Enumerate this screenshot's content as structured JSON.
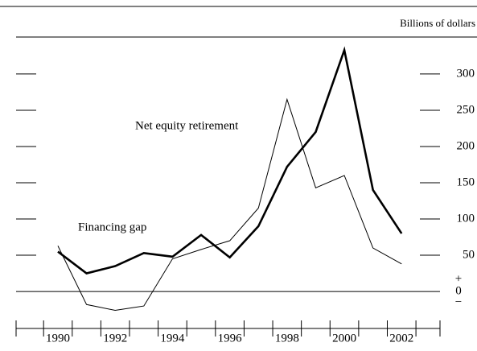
{
  "chart_data": {
    "type": "line",
    "unit_label": "Billions of dollars",
    "x": [
      1990,
      1991,
      1992,
      1993,
      1994,
      1995,
      1996,
      1997,
      1998,
      1999,
      2000,
      2001,
      2002
    ],
    "series": [
      {
        "name": "Net equity retirement",
        "color": "#000000",
        "width": 2.6,
        "values": [
          55,
          25,
          35,
          53,
          48,
          78,
          47,
          90,
          172,
          220,
          333,
          140,
          80
        ]
      },
      {
        "name": "Financing gap",
        "color": "#000000",
        "width": 1,
        "values": [
          63,
          -18,
          -26,
          -20,
          45,
          58,
          70,
          115,
          265,
          143,
          160,
          60,
          38
        ]
      }
    ],
    "xlim": [
      1988.54,
      2003.34
    ],
    "xticks": [
      1990,
      1992,
      1994,
      1996,
      1998,
      2000,
      2002
    ],
    "ylim": [
      -51,
      351
    ],
    "yticks": [
      0,
      50,
      100,
      150,
      200,
      250,
      300
    ],
    "zero_signs": [
      "+",
      "−"
    ]
  }
}
